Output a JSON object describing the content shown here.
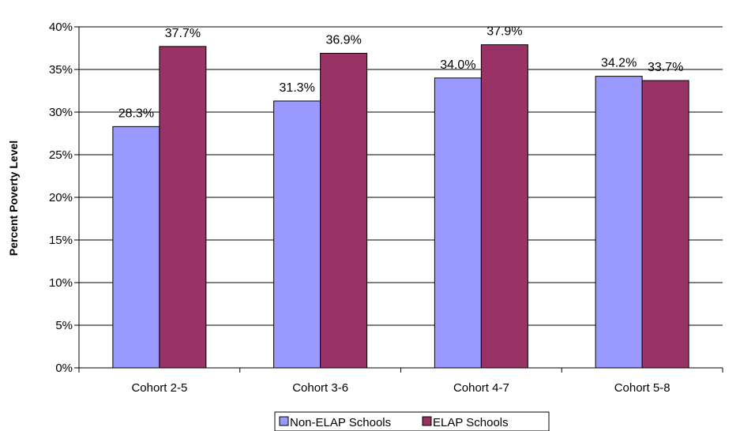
{
  "chart_data": {
    "type": "bar",
    "categories": [
      "Cohort 2-5",
      "Cohort 3-6",
      "Cohort 4-7",
      "Cohort 5-8"
    ],
    "series": [
      {
        "name": "Non-ELAP Schools",
        "values": [
          28.3,
          31.3,
          34.0,
          34.2
        ],
        "color": "#9999ff"
      },
      {
        "name": "ELAP Schools",
        "values": [
          37.7,
          36.9,
          37.9,
          33.7
        ],
        "color": "#993366"
      }
    ],
    "data_labels": [
      [
        "28.3%",
        "31.3%",
        "34.0%",
        "34.2%"
      ],
      [
        "37.7%",
        "36.9%",
        "37.9%",
        "33.7%"
      ]
    ],
    "title": "",
    "xlabel": "",
    "ylabel": "Percent Poverty Level",
    "ylim": [
      0,
      40
    ],
    "yticks": [
      0,
      5,
      10,
      15,
      20,
      25,
      30,
      35,
      40
    ],
    "ytick_labels": [
      "0%",
      "5%",
      "10%",
      "15%",
      "20%",
      "25%",
      "30%",
      "35%",
      "40%"
    ],
    "grid": "horizontal major gridlines",
    "legend_position": "bottom"
  }
}
